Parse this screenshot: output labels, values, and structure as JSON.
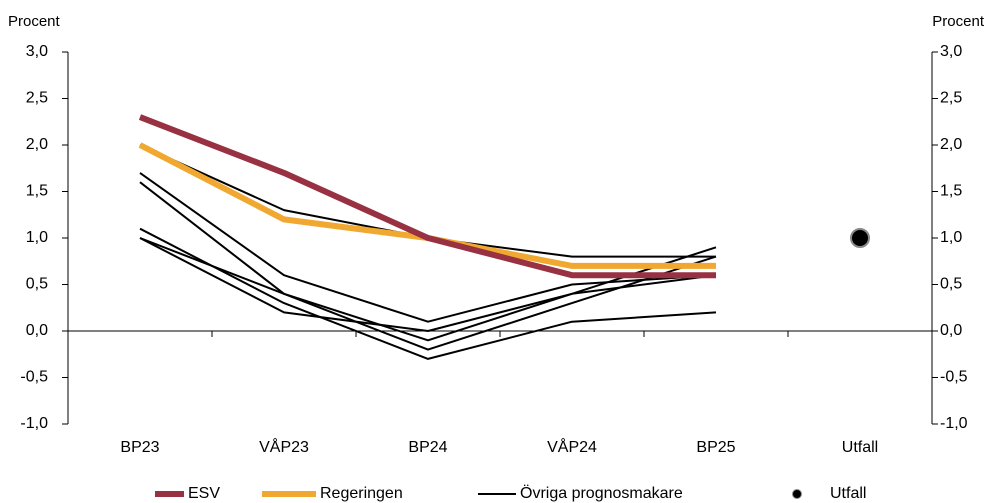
{
  "chart_data": {
    "type": "line",
    "y_label": "Procent",
    "y2_label": "Procent",
    "categories": [
      "BP23",
      "VÅP23",
      "BP24",
      "VÅP24",
      "BP25",
      "Utfall"
    ],
    "series": [
      {
        "name": "ESV",
        "color": "#983142",
        "values": [
          2.3,
          1.7,
          1.0,
          0.6,
          0.6,
          null
        ]
      },
      {
        "name": "Regeringen",
        "color": "#f0a830",
        "values": [
          2.0,
          1.2,
          1.0,
          0.7,
          0.7,
          null
        ]
      },
      {
        "name": "Övriga prognosmakare",
        "color": "#000000",
        "lines": [
          [
            2.0,
            1.3,
            1.0,
            0.8,
            0.8,
            null
          ],
          [
            1.7,
            0.6,
            0.1,
            0.5,
            0.6,
            null
          ],
          [
            1.6,
            0.4,
            -0.2,
            0.3,
            0.8,
            null
          ],
          [
            1.1,
            0.3,
            -0.3,
            0.1,
            0.2,
            null
          ],
          [
            1.0,
            0.4,
            -0.1,
            0.4,
            0.9,
            null
          ],
          [
            1.0,
            0.2,
            0.0,
            0.4,
            0.6,
            null
          ]
        ]
      },
      {
        "name": "Utfall",
        "color": "#000000",
        "marker": "dot",
        "values": [
          null,
          null,
          null,
          null,
          null,
          1.0
        ]
      }
    ],
    "ylim": [
      -1.0,
      3.0
    ],
    "yticks": [
      {
        "value": -1.0,
        "label": "-1,0"
      },
      {
        "value": -0.5,
        "label": "-0,5"
      },
      {
        "value": 0.0,
        "label": "0,0"
      },
      {
        "value": 0.5,
        "label": "0,5"
      },
      {
        "value": 1.0,
        "label": "1,0"
      },
      {
        "value": 1.5,
        "label": "1,5"
      },
      {
        "value": 2.0,
        "label": "2,0"
      },
      {
        "value": 2.5,
        "label": "2,5"
      },
      {
        "value": 3.0,
        "label": "3,0"
      }
    ],
    "y2lim": [
      -1.0,
      3.0
    ],
    "y2ticks": [
      {
        "value": -1.0,
        "label": "-1,0"
      },
      {
        "value": -0.5,
        "label": "-0,5"
      },
      {
        "value": 0.0,
        "label": "0,0"
      },
      {
        "value": 0.5,
        "label": "0,5"
      },
      {
        "value": 1.0,
        "label": "1,0"
      },
      {
        "value": 1.5,
        "label": "1,5"
      },
      {
        "value": 2.0,
        "label": "2,0"
      },
      {
        "value": 2.5,
        "label": "2,5"
      },
      {
        "value": 3.0,
        "label": "3,0"
      }
    ]
  }
}
